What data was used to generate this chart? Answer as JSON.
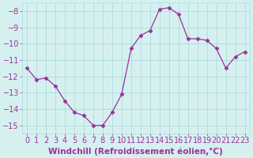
{
  "x": [
    0,
    1,
    2,
    3,
    4,
    5,
    6,
    7,
    8,
    9,
    10,
    11,
    12,
    13,
    14,
    15,
    16,
    17,
    18,
    19,
    20,
    21,
    22,
    23
  ],
  "y": [
    -11.5,
    -12.2,
    -12.1,
    -12.6,
    -13.5,
    -14.2,
    -14.4,
    -15.0,
    -15.0,
    -14.2,
    -13.1,
    -10.3,
    -9.5,
    -9.2,
    -7.9,
    -7.8,
    -8.2,
    -9.7,
    -9.7,
    -9.8,
    -10.3,
    -11.5,
    -10.8,
    -10.5
  ],
  "xlabel": "Windchill (Refroidissement éolien,°C)",
  "ylim": [
    -15.5,
    -7.5
  ],
  "xlim": [
    -0.5,
    23.5
  ],
  "yticks": [
    -15,
    -14,
    -13,
    -12,
    -11,
    -10,
    -9,
    -8
  ],
  "xticks": [
    0,
    1,
    2,
    3,
    4,
    5,
    6,
    7,
    8,
    9,
    10,
    11,
    12,
    13,
    14,
    15,
    16,
    17,
    18,
    19,
    20,
    21,
    22,
    23
  ],
  "line_color": "#993399",
  "marker": "D",
  "marker_size": 2.5,
  "bg_color": "#d6f0f0",
  "grid_color": "#aadddd",
  "tick_label_color": "#993399",
  "xlabel_color": "#993399",
  "xlabel_fontsize": 7.5,
  "tick_fontsize": 7.0,
  "figsize": [
    3.2,
    2.0
  ],
  "dpi": 100
}
